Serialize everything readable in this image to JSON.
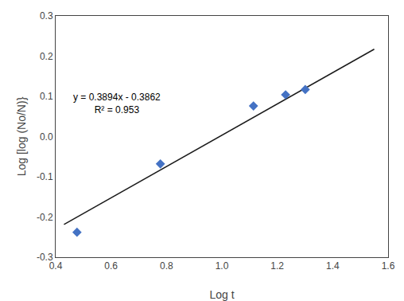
{
  "chart_data": {
    "type": "scatter",
    "xlabel": "Log t",
    "ylabel": "Log [log (No/N)}",
    "series": [
      {
        "type": "line",
        "color": "#1a1a1a",
        "x": [
          0.43,
          1.55
        ],
        "values": [
          -0.218758,
          0.21737
        ]
      },
      {
        "type": "scatter",
        "marker": "diamond",
        "color": "#4472C4",
        "x": [
          0.477,
          0.778,
          1.114,
          1.23,
          1.301
        ],
        "values": [
          -0.238,
          -0.068,
          0.076,
          0.104,
          0.117
        ]
      }
    ],
    "annotations": [
      {
        "x": 0.62,
        "y": 0.115,
        "text": "y = 0.3894x - 0.3862\nR² = 0.953"
      }
    ],
    "xlim": [
      0.4,
      1.6
    ],
    "ylim": [
      -0.3,
      0.3
    ],
    "xticks": [
      0.4,
      0.6,
      0.8,
      {
        "value": 1,
        "label": "1.0"
      },
      1.2,
      1.4,
      1.6
    ],
    "yticks": [
      -0.3,
      -0.2,
      -0.1,
      {
        "value": 0,
        "label": "0.0"
      },
      0.1,
      0.2,
      0.3
    ],
    "grid": false
  }
}
